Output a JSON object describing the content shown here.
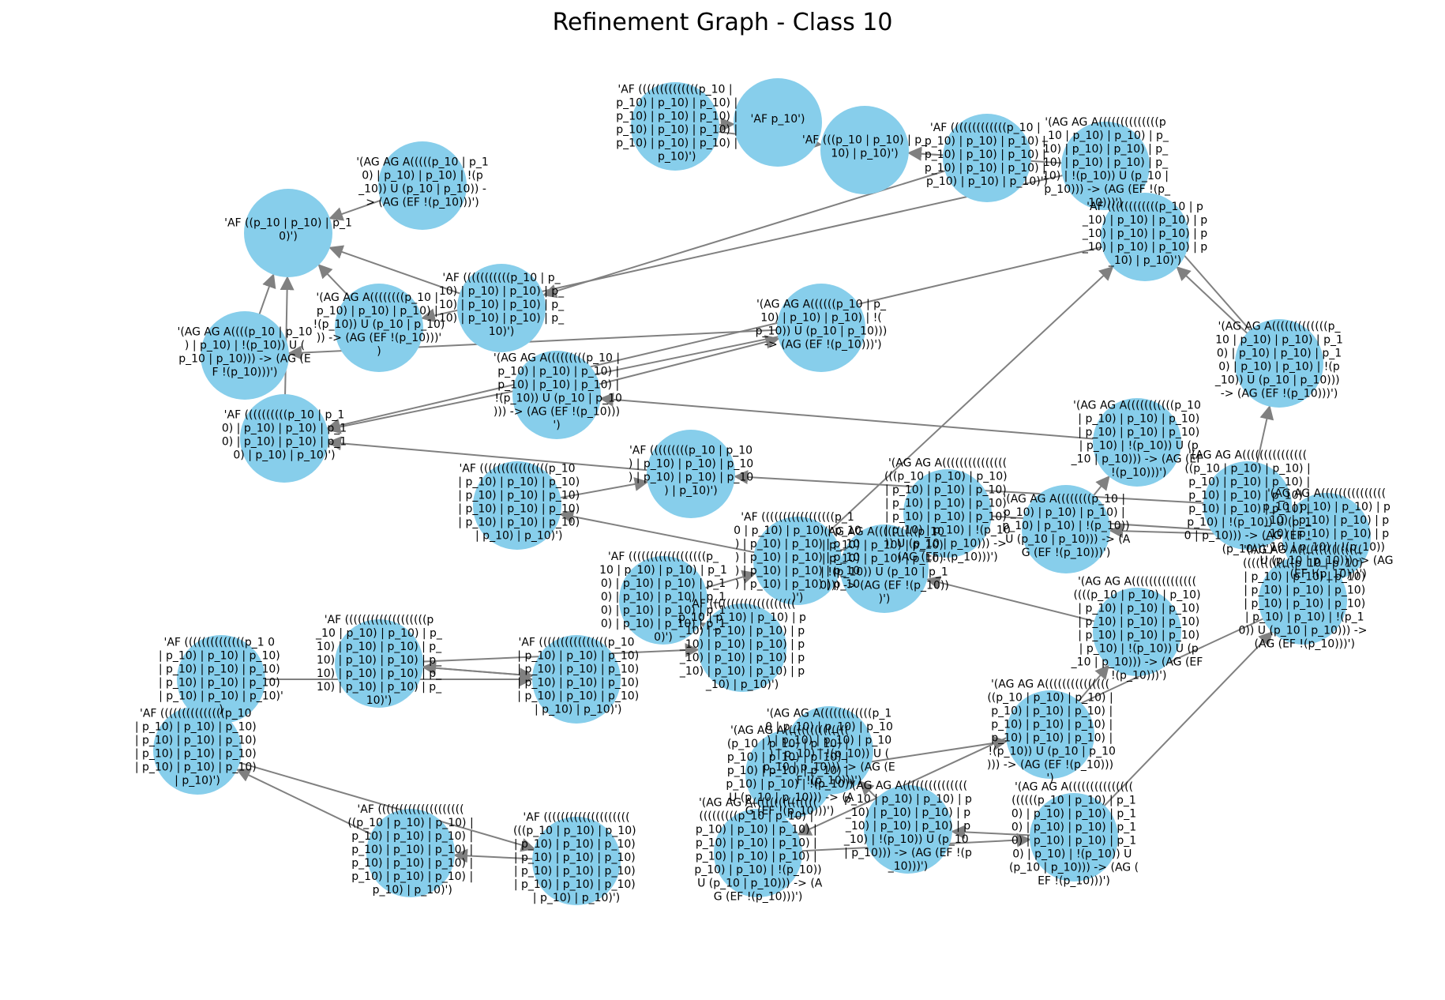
{
  "title": "Refinement Graph - Class 10",
  "colors": {
    "node": "#87ceeb",
    "edge": "#808080",
    "background": "#ffffff",
    "text": "#000000"
  },
  "nodes": [
    {
      "id": "n1",
      "label": "'AF p_10')"
    },
    {
      "id": "n2",
      "label": "'AF (((p_10 | p_10) | p_10) | p_10)')"
    },
    {
      "id": "n3",
      "label": "'AF ((((((((((((((p_10 | p_10) | p_10) | p_10) | p_10) | p_10) | p_10) | p_10) | p_10) | p_10) | p_10) | p_10) | p_10) | p_10)')"
    },
    {
      "id": "n4",
      "label": "'(AG AG A(((((p_10 | p_10) | p_10) | p_10) | !(p_10)) U (p_10 | p_10)) -> (AG (EF !(p_10)))')"
    },
    {
      "id": "n5",
      "label": "'AF (((((((((((((p_10 | p_10) | p_10) | p_10) | p_10) | p_10) | p_10) | p_10) | p_10) | p_10) | p_10) | p_10) | p_10)')"
    },
    {
      "id": "n6",
      "label": "'AF ((p_10 | p_10) | p_10)')"
    },
    {
      "id": "n7",
      "label": "'AF (((((((((((p_10 | p_10) | p_10) | p_10) | p_10) | p_10) | p_10) | p_10) | p_10) | p_10) | p_10)')"
    },
    {
      "id": "n8",
      "label": "'(AG AG A((((((((p_10 | p_10) | p_10) | p_10) | !(p_10)) U (p_10 | p_10))) -> (AG (EF !(p_10)))')"
    },
    {
      "id": "n9",
      "label": "'(AG AG A((((p_10 | p_10) | p_10) | !(p_10)) U (p_10 | p_10))) -> (AG (EF !(p_10)))')"
    },
    {
      "id": "n10",
      "label": "'AF ((((((((((p_10 | p_10) | p_10) | p_10) | p_10) | p_10) | p_10) | p_10) | p_10) | p_10)')"
    },
    {
      "id": "n11",
      "label": "'(AG AG A((((((p_10 | p_10) | p_10) | p_10) | !(p_10)) U (p_10 | p_10))) -> (AG (EF !(p_10)))')"
    },
    {
      "id": "n12",
      "label": "'(AG AG A((((((((((((((p_10 | p_10) | p_10) | p_10) | p_10) | p_10) | p_10) | p_10) | p_10) | p_10) | !(p_10)) U (p_10 | p_10))) -> (AG (EF !(p_10)))')"
    },
    {
      "id": "n13",
      "label": "'AF ((((((((((((p_10 | p_10) | p_10) | p_10) | p_10) | p_10) | p_10) | p_10) | p_10) | p_10) | p_10) | p_10)')"
    },
    {
      "id": "n14",
      "label": "'(AG AG A(((((((((p_10 | p_10) | p_10) | p_10) | p_10) | p_10) | p_10) | !(p_10)) U (p_10 | p_10))) -> (AG (EF !(p_10)))')"
    },
    {
      "id": "n15",
      "label": "'(AG AG A(((((((((((((p_10 | p_10) | p_10) | p_10) | p_10) | p_10) | p_10) | p_10) | p_10) | !(p_10)) U (p_10 | p_10))) -> (AG (EF !(p_10)))')"
    },
    {
      "id": "n16",
      "label": "'AF (((((((((p_10 | p_10) | p_10) | p_10) | p_10) | p_10) | p_10) | p_10) | p_10)')"
    },
    {
      "id": "n17",
      "label": "'(AG AG A(((((((((((p_10 | p_10) | p_10) | p_10) | p_10) | p_10) | p_10) | p_10) | !(p_10)) U (p_10 | p_10))) -> (AG (EF !(p_10)))')"
    },
    {
      "id": "n18",
      "label": "'AF ((((((((((((((((p_10 | p_10) | p_10) | p_10) | p_10) | p_10) | p_10) | p_10) | p_10) | p_10) | p_10) | p_10) | p_10) | p_10) | p_10)')"
    },
    {
      "id": "n19",
      "label": "'(AG AG A(((((((((((((((((p_10 | p_10) | p_10) | p_10) | p_10) | p_10) | p_10) | p_10) | p_10) | p_10) | p_10) | p_10) | p_10) | !(p_10)) U (p_10 | p_10))) -> (AG (EF !(p_10)))')"
    },
    {
      "id": "n20",
      "label": "'(AG AG A((((((((p_10 | p_10) | p_10) | p_10) | p_10) | p_10) | !(p_10)) U (p_10 | p_10))) -> (AG (EF !(p_10)))')"
    },
    {
      "id": "n21",
      "label": "'AF (((((((((((((((((p_10 | p_10) | p_10) | p_10) | p_10) | p_10) | p_10) | p_10) | p_10) | p_10) | p_10) | p_10) | p_10) | p_10) | p_10) | p_10)')"
    },
    {
      "id": "n22",
      "label": "'(AG AG A(((((((((((((((p_10 | p_10) | p_10) | p_10) | p_10) | p_10) | p_10) | p_10) | p_10) | p_10) | p_10) | !(p_10)) U (p_10 | p_10))) -> (AG (EF !(p_10)))')"
    },
    {
      "id": "n23",
      "label": "'AF ((((((((((((((((((p_10 | p_10) | p_10) | p_10) | p_10) | p_10) | p_10) | p_10) | p_10) | p_10) | p_10) | p_10) | p_10) | p_10) | p_10) | p_10)')"
    },
    {
      "id": "n24",
      "label": "'(AG AG A((((((((((((((((((p_10 | p_10) | p_10) | p_10) | p_10) | p_10) | p_10) | p_10) | p_10) | p_10) | p_10) | p_10) | p_10) | p_10) | !(p_10)) U (p_10 | p_10))) -> (AG (EF !(p_10)))')"
    },
    {
      "id": "n25",
      "label": "'AF ((((((((((((((((((((p_10 | p_10) | p_10) | p_10) | p_10) | p_10) | p_10) | p_10) | p_10) | p_10) | p_10) | p_10) | p_10) | p_10) | p_10) | p_10) | p_10)')"
    },
    {
      "id": "n26",
      "label": "'(AG AG A((((((((((p_10 | p_10) | p_10) | p_10) | p_10) | p_10) | p_10) | !(p_10)) U (p_10 | p_10))) -> (AG (EF !(p_10)))')"
    },
    {
      "id": "n27",
      "label": "'(AG AG A(((((((((((((((((((p_10 | p_10) | p_10) | p_10) | p_10) | p_10) | p_10) | p_10) | p_10) | p_10) | p_10) | p_10) | p_10) | !(p_10)) U (p_10 | p_10))) -> (AG (EF !(p_10)))')"
    },
    {
      "id": "n28",
      "label": "'AF (((((((((((((((((((p_10 | p_10) | p_10) | p_10) | p_10) | p_10) | p_10) | p_10) | p_10) | p_10) | p_10) | p_10) | p_10) | p_10) | p_10) | p_10)')"
    },
    {
      "id": "n29",
      "label": "'(AG AG A(((((((((((((((((p_10 | p_10) | p_10) | p_10) | p_10) | p_10) | p_10) | p_10) | p_10) | p_10) | p_10) | p_10) | !(p_10)) U (p_10 | p_10))) -> (AG (EF !(p_10)))')"
    },
    {
      "id": "n30",
      "label": "'AF ((((((((((((((((p_10 | p_10) | p_10) | p_10) | p_10) | p_10) | p_10) | p_10) | p_10) | p_10) | p_10) | p_10) | p_10) | p_10) | p_10)')"
    },
    {
      "id": "n31",
      "label": "'(AG AG A((((((((((((((((p_10 | p_10) | p_10) | p_10) | p_10) | p_10) | p_10) | p_10) | p_10) | p_10) | p_10) | !(p_10)) U (p_10 | p_10))) -> (AG (EF !(p_10)))')"
    },
    {
      "id": "n32",
      "label": "'AF ((((((((((((((p_1 0 | p_10) | p_10) | p_10) | p_10) | p_10) | p_10) | p_10) | p_10) | p_10) | p_10) | p_10) | p_10)')"
    },
    {
      "id": "n33",
      "label": "'(AG AG A((((((((((((p_10 | p_10) | p_10) | p_10) | p_10) | p_10) | p_10) | p_10) | !(p_10)) U (p_10 | p_10))) -> (AG (EF !(p_10)))')"
    },
    {
      "id": "n34",
      "label": "'(AG AG A(((((((((((((((p_10 | p_10) | p_10) | p_10) | p_10) | p_10) | p_10) | p_10) | p_10) | p_10) | !(p_10)) U (p_10 | p_10))) -> (AG (EF !(p_10)))')"
    },
    {
      "id": "n35",
      "label": "'AF (((((((((((((((p_10 | p_10) | p_10) | p_10) | p_10) | p_10) | p_10) | p_10) | p_10) | p_10) | p_10) | p_10) | p_10) | p_10)')"
    },
    {
      "id": "n36",
      "label": "'(AG AG A(((((((((((((((((((((p_10 | p_10) | p_10) | p_10) | p_10) | p_10) | p_10) | p_10) | p_10) | p_10) | p_10) | p_10) | p_10) | !(p_10)) U (p_10 | p_10))) -> (AG (EF !(p_10)))')"
    },
    {
      "id": "n37",
      "label": "'AF ((((((((((((((((((((((p_10 | p_10) | p_10) | p_10) | p_10) | p_10) | p_10) | p_10) | p_10) | p_10) | p_10) | p_10) | p_10) | p_10) | p_10) | p_10) | p_10)')"
    },
    {
      "id": "n38",
      "label": "'(AG AG A((((((((((((((((((((((((p_10 | p_10) | p_10) | p_10) | p_10) | p_10) | p_10) | p_10) | p_10) | p_10) | p_10) | p_10) | p_10) | !(p_10)) U (p_10 | p_10))) -> (AG (EF !(p_10)))')"
    },
    {
      "id": "n39",
      "label": "'AF (((((((((((((((((((((((p_10 | p_10) | p_10) | p_10) | p_10) | p_10) | p_10) | p_10) | p_10) | p_10) | p_10) | p_10) | p_10) | p_10) | p_10) | p_10) | p_10)')"
    },
    {
      "id": "n40",
      "label": "'(AG AG A(((((((((((((((((((((((((((p_10 | p_10) | p_10) | p_10) | p_10) | p_10) | p_10) | p_10) | p_10) | p_10) | p_10) | p_10) | p_10) | !(p_10)) U (p_10 | p_10))) -> (AG (EF !(p_10)))')"
    }
  ],
  "edges": [
    [
      "n8",
      "n6"
    ],
    [
      "n4",
      "n6"
    ],
    [
      "n7",
      "n6"
    ],
    [
      "n9",
      "n6"
    ],
    [
      "n10",
      "n6"
    ],
    [
      "n3",
      "n1"
    ],
    [
      "n3",
      "n2"
    ],
    [
      "n5",
      "n2"
    ],
    [
      "n13",
      "n10"
    ],
    [
      "n12",
      "n2"
    ],
    [
      "n11",
      "n10"
    ],
    [
      "n14",
      "n11"
    ],
    [
      "n15",
      "n13"
    ],
    [
      "n17",
      "n14"
    ],
    [
      "n19",
      "n16"
    ],
    [
      "n20",
      "n17"
    ],
    [
      "n21",
      "n18"
    ],
    [
      "n22",
      "n20"
    ],
    [
      "n23",
      "n21"
    ],
    [
      "n24",
      "n22"
    ],
    [
      "n25",
      "n23"
    ],
    [
      "n26",
      "n24"
    ],
    [
      "n27",
      "n26"
    ],
    [
      "n28",
      "n25"
    ],
    [
      "n29",
      "n27"
    ],
    [
      "n30",
      "n28"
    ],
    [
      "n31",
      "n29"
    ],
    [
      "n32",
      "n30"
    ],
    [
      "n33",
      "n31"
    ],
    [
      "n34",
      "n33"
    ],
    [
      "n35",
      "n32"
    ],
    [
      "n36",
      "n34"
    ],
    [
      "n37",
      "n35"
    ],
    [
      "n38",
      "n36"
    ],
    [
      "n39",
      "n37"
    ],
    [
      "n40",
      "n38"
    ],
    [
      "n16",
      "n10"
    ],
    [
      "n18",
      "n16"
    ],
    [
      "n12",
      "n8"
    ],
    [
      "n15",
      "n12"
    ],
    [
      "n19",
      "n15"
    ],
    [
      "n22",
      "n19"
    ],
    [
      "n21",
      "n13"
    ],
    [
      "n24",
      "n26"
    ],
    [
      "n28",
      "n30"
    ],
    [
      "n11",
      "n9"
    ],
    [
      "n5",
      "n7"
    ],
    [
      "n35",
      "n39"
    ],
    [
      "n36",
      "n40"
    ]
  ]
}
